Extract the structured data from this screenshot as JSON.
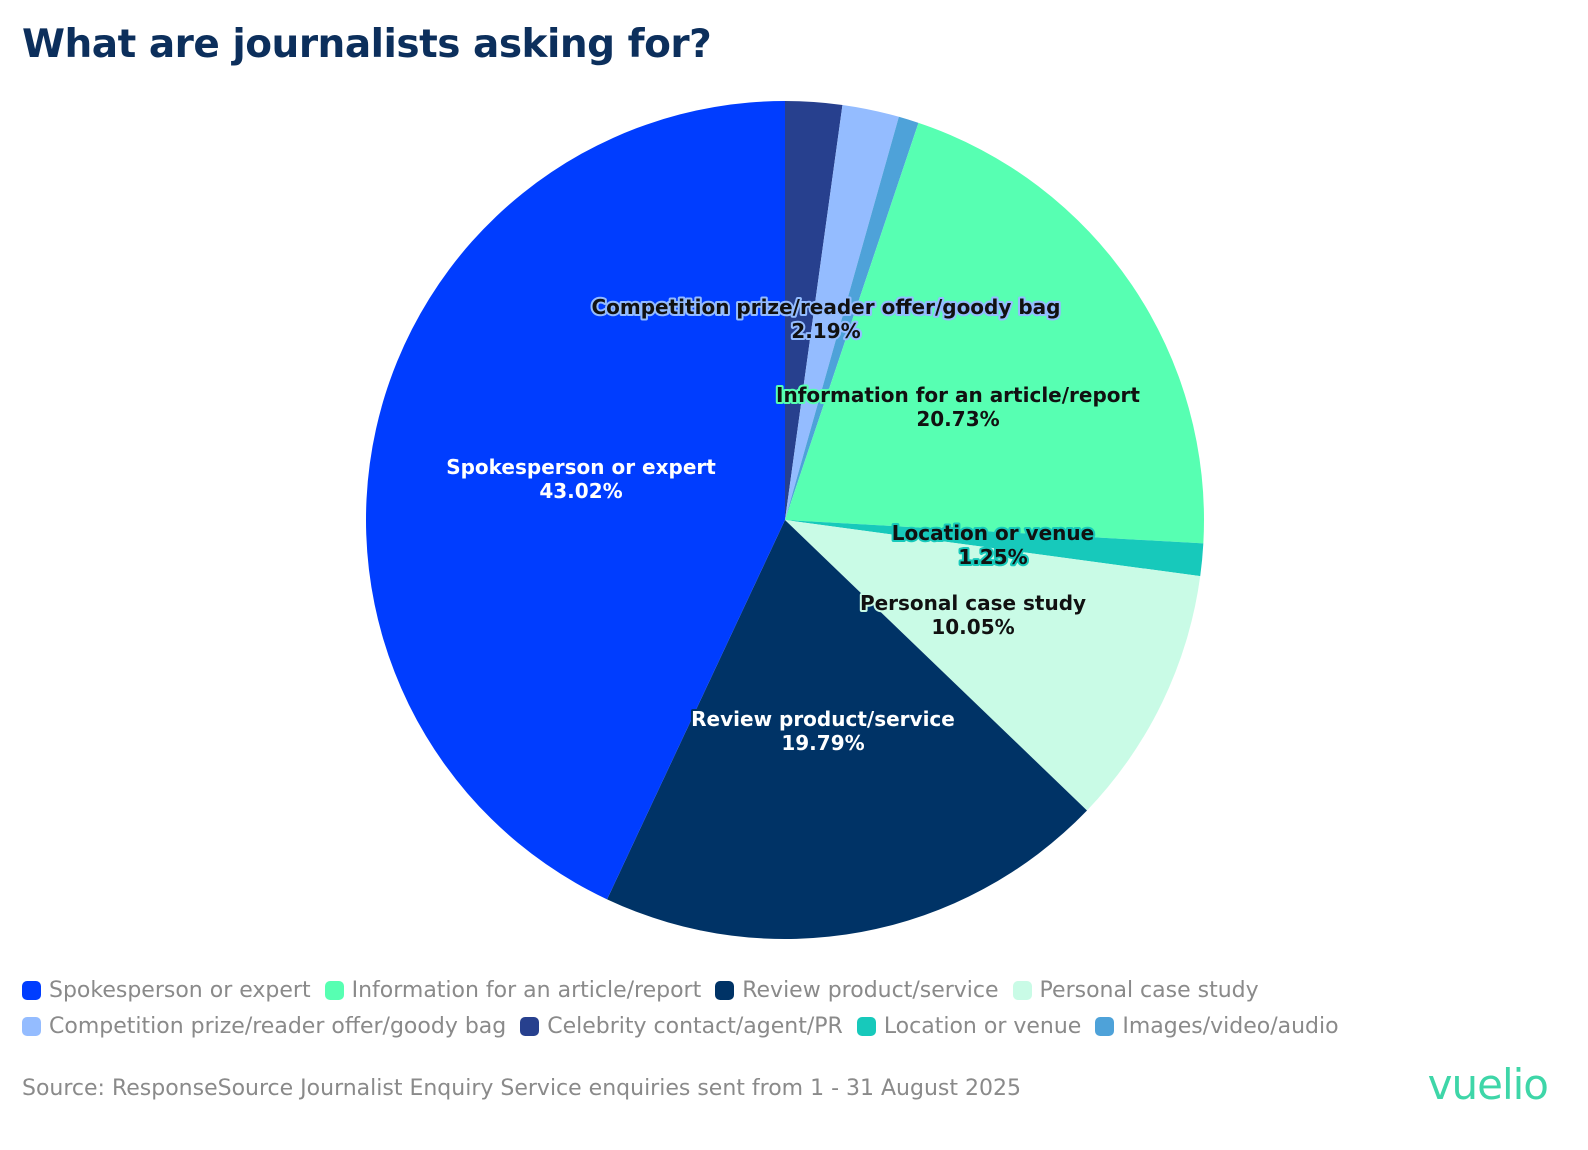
{
  "chart_data": {
    "type": "pie",
    "title": "What are journalists asking for?",
    "start_angle_deg": 0,
    "direction": "clockwise",
    "slices": [
      {
        "name": "Celebrity contact/agent/PR",
        "value": 2.19,
        "color": "#27408e",
        "label": "",
        "pct_label": ""
      },
      {
        "name": "Competition prize/reader offer/goody bag",
        "value": 2.19,
        "color": "#94bcff",
        "label": "Competition prize/reader offer/goody bag",
        "pct_label": "2.19%"
      },
      {
        "name": "Images/video/audio",
        "value": 0.78,
        "color": "#4ea2d9",
        "label": "",
        "pct_label": ""
      },
      {
        "name": "Information for an article/report",
        "value": 20.73,
        "color": "#57ffb2",
        "label": "Information for an article/report",
        "pct_label": "20.73%"
      },
      {
        "name": "Location or venue",
        "value": 1.25,
        "color": "#17c9bb",
        "label": "Location or venue",
        "pct_label": "1.25%"
      },
      {
        "name": "Personal case study",
        "value": 10.05,
        "color": "#c9fbe6",
        "label": "Personal case study",
        "pct_label": "10.05%"
      },
      {
        "name": "Review product/service",
        "value": 19.79,
        "color": "#003366",
        "label": "Review product/service",
        "pct_label": "19.79%"
      },
      {
        "name": "Spokesperson or expert",
        "value": 43.02,
        "color": "#003dff",
        "label": "Spokesperson or expert",
        "pct_label": "43.02%"
      }
    ],
    "legend_position": "bottom"
  },
  "legend": {
    "rows": [
      [
        {
          "label": "Spokesperson or expert",
          "color": "#003dff"
        },
        {
          "label": "Information for an article/report",
          "color": "#57ffb2"
        },
        {
          "label": "Review product/service",
          "color": "#003366"
        },
        {
          "label": "Personal case study",
          "color": "#c9fbe6"
        }
      ],
      [
        {
          "label": "Competition prize/reader offer/goody bag",
          "color": "#94bcff"
        },
        {
          "label": "Celebrity contact/agent/PR",
          "color": "#27408e"
        },
        {
          "label": "Location or venue",
          "color": "#17c9bb"
        },
        {
          "label": "Images/video/audio",
          "color": "#4ea2d9"
        }
      ]
    ]
  },
  "source": "Source: ResponseSource Journalist Enquiry Service enquiries sent from 1 - 31 August 2025",
  "logo": "vuelio",
  "colors": {
    "title": "#0c2f5c",
    "muted_text": "#8a8a8a",
    "logo": "#3ed6a8"
  }
}
